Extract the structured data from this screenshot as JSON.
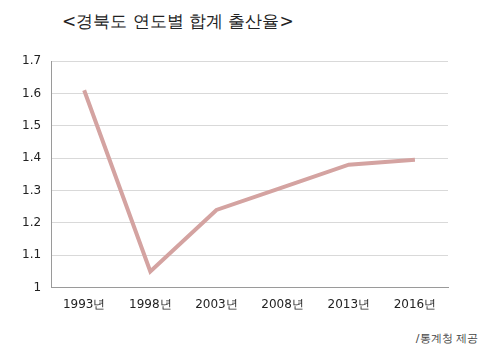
{
  "chart_data": {
    "type": "line",
    "title": "<경북도 연도별 합계 출산율>",
    "categories": [
      "1993년",
      "1998년",
      "2003년",
      "2008년",
      "2013년",
      "2016년"
    ],
    "values": [
      1.61,
      1.05,
      1.24,
      1.31,
      1.38,
      1.395
    ],
    "color": "#d4a3a1",
    "marker": "none",
    "ylim": [
      1,
      1.7
    ],
    "yticks": [
      1,
      1.1,
      1.2,
      1.3,
      1.4,
      1.5,
      1.6,
      1.7
    ],
    "grid": true,
    "annotation": "/통계청 제공"
  }
}
